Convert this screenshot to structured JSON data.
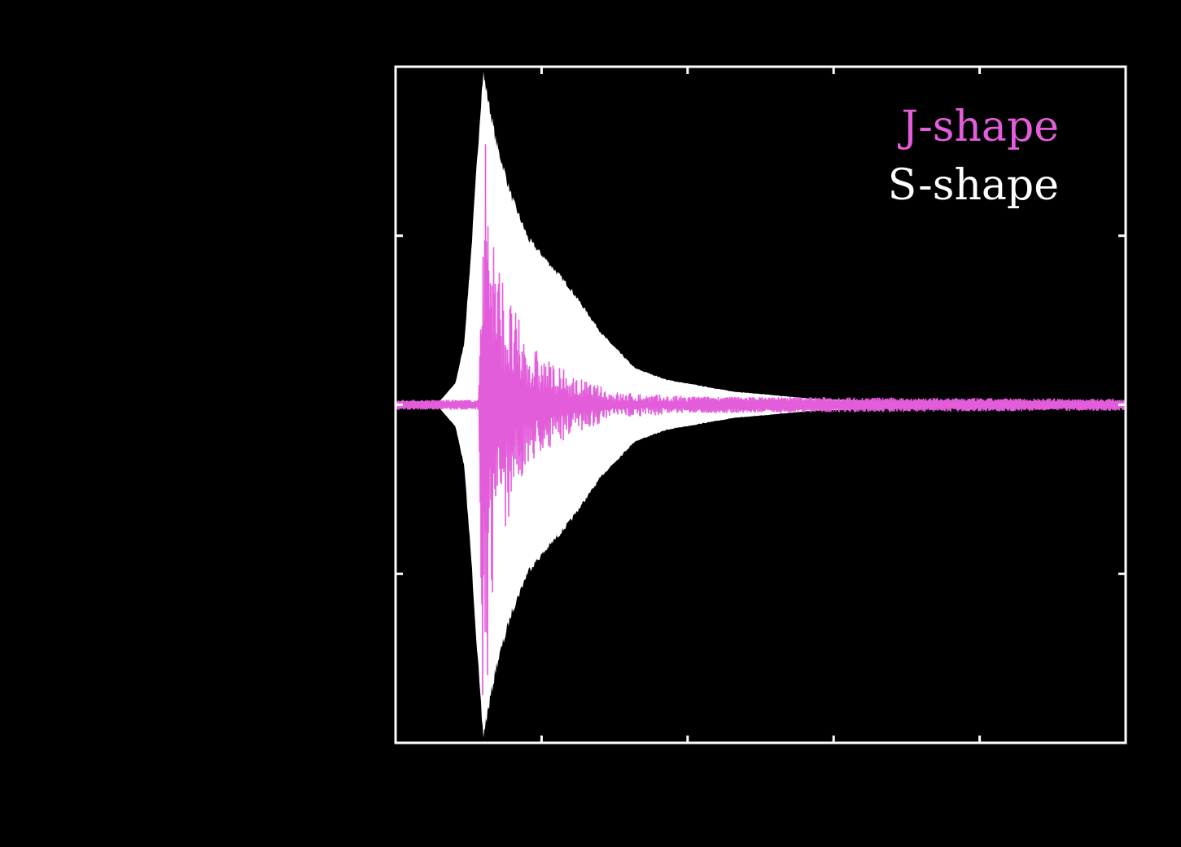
{
  "chart_data": {
    "type": "line",
    "title": "",
    "xlabel": "",
    "ylabel": "",
    "xlim": [
      0,
      5
    ],
    "ylim": [
      -2,
      2
    ],
    "xticks": [
      1,
      2,
      3,
      4
    ],
    "yticks": [
      -1,
      0,
      1
    ],
    "tick_labels_shown": false,
    "grid": false,
    "background": "#000000",
    "legend_placement": "top-right",
    "series": [
      {
        "name": "S-shape",
        "color": "#ffffff",
        "style": "filled symmetric oscillation envelope",
        "x": [
          0,
          0.3,
          0.41,
          0.47,
          0.52,
          0.58,
          0.6,
          0.69,
          0.8,
          0.91,
          1.19,
          1.42,
          1.64,
          1.86,
          2.31,
          2.87,
          3.42,
          5
        ],
        "amplitude": [
          0.02,
          0.02,
          0.13,
          0.37,
          0.95,
          1.77,
          2.0,
          1.58,
          1.24,
          1.0,
          0.71,
          0.42,
          0.22,
          0.15,
          0.08,
          0.035,
          0.02,
          0.015
        ]
      },
      {
        "name": "J-shape",
        "color": "#e35ddb",
        "style": "oscillating signal",
        "x": [
          0,
          0.57,
          0.6,
          0.65,
          0.7,
          0.8,
          0.9,
          1.0,
          1.2,
          1.5,
          2.0,
          5
        ],
        "amplitude": [
          0.03,
          0.03,
          2.0,
          1.4,
          0.9,
          0.6,
          0.4,
          0.3,
          0.18,
          0.08,
          0.05,
          0.035
        ]
      }
    ]
  }
}
